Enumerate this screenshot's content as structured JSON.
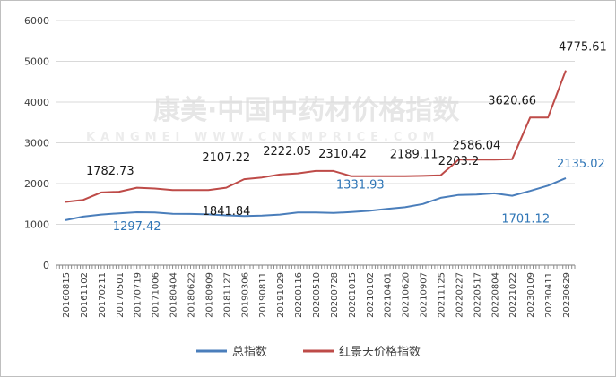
{
  "watermark": {
    "text": "康美·中国中药材价格指数",
    "sub": "KANGMEI WWW.CNKMPRICE.COM"
  },
  "chart_data": {
    "type": "line",
    "ylim": [
      0,
      6000
    ],
    "yticks": [
      0,
      1000,
      2000,
      3000,
      4000,
      5000,
      6000
    ],
    "categories": [
      "20160815",
      "20161102",
      "20170211",
      "20170501",
      "20170719",
      "20171006",
      "20180404",
      "20180622",
      "20180909",
      "20181127",
      "20190306",
      "20190811",
      "20191029",
      "20200116",
      "20200510",
      "20200728",
      "20201015",
      "20210102",
      "20210401",
      "20210620",
      "20210907",
      "20211125",
      "20220227",
      "20220517",
      "20220804",
      "20221022",
      "20230109",
      "20230411",
      "20230629"
    ],
    "legend": {
      "position": "bottom"
    },
    "grid": {
      "horizontal": true,
      "vertical": false
    },
    "series": [
      {
        "name": "总指数",
        "color": "#4a7ebb",
        "values": [
          1100,
          1190,
          1240,
          1270,
          1297.42,
          1290,
          1260,
          1255,
          1245,
          1220,
          1205,
          1215,
          1240,
          1290,
          1290,
          1280,
          1300,
          1331.93,
          1380,
          1420,
          1500,
          1650,
          1720,
          1730,
          1760,
          1701.12,
          1820,
          1950,
          2135.02
        ]
      },
      {
        "name": "红景天价格指数",
        "color": "#be4b48",
        "values": [
          1550,
          1600,
          1782.73,
          1800,
          1900,
          1880,
          1841.84,
          1841.84,
          1841.84,
          1900,
          2107.22,
          2150,
          2222.05,
          2250,
          2310.42,
          2310.42,
          2180,
          2180,
          2180,
          2180,
          2189.11,
          2203.2,
          2586.04,
          2586.04,
          2586.04,
          2600,
          3620.66,
          3620.66,
          4775.61
        ]
      }
    ],
    "annotations": [
      {
        "series": 0,
        "index": 4,
        "label": "1297.42",
        "dx": 0,
        "dy": 20,
        "anchor": "middle"
      },
      {
        "series": 0,
        "index": 17,
        "label": "1331.93",
        "dx": -10,
        "dy": -25,
        "anchor": "middle"
      },
      {
        "series": 0,
        "index": 25,
        "label": "1701.12",
        "dx": 15,
        "dy": 30,
        "anchor": "middle"
      },
      {
        "series": 0,
        "index": 28,
        "label": "2135.02",
        "dx": -10,
        "dy": -12,
        "anchor": "start"
      },
      {
        "series": 1,
        "index": 2,
        "label": "1782.73",
        "dx": 10,
        "dy": -20,
        "anchor": "middle"
      },
      {
        "series": 1,
        "index": 6,
        "label": "1841.84",
        "dx": 60,
        "dy": 28,
        "anchor": "middle"
      },
      {
        "series": 1,
        "index": 10,
        "label": "2107.22",
        "dx": -20,
        "dy": -20,
        "anchor": "middle"
      },
      {
        "series": 1,
        "index": 12,
        "label": "2222.05",
        "dx": 8,
        "dy": -22,
        "anchor": "middle"
      },
      {
        "series": 1,
        "index": 14,
        "label": "2310.42",
        "dx": 30,
        "dy": -15,
        "anchor": "middle"
      },
      {
        "series": 1,
        "index": 20,
        "label": "2189.11",
        "dx": -10,
        "dy": -20,
        "anchor": "middle"
      },
      {
        "series": 1,
        "index": 21,
        "label": "2203.2",
        "dx": 20,
        "dy": -12,
        "anchor": "middle"
      },
      {
        "series": 1,
        "index": 23,
        "label": "2586.04",
        "dx": 0,
        "dy": -12,
        "anchor": "middle"
      },
      {
        "series": 1,
        "index": 26,
        "label": "3620.66",
        "dx": -20,
        "dy": -15,
        "anchor": "middle"
      },
      {
        "series": 1,
        "index": 28,
        "label": "4775.61",
        "dx": -8,
        "dy": -22,
        "anchor": "start"
      }
    ]
  }
}
